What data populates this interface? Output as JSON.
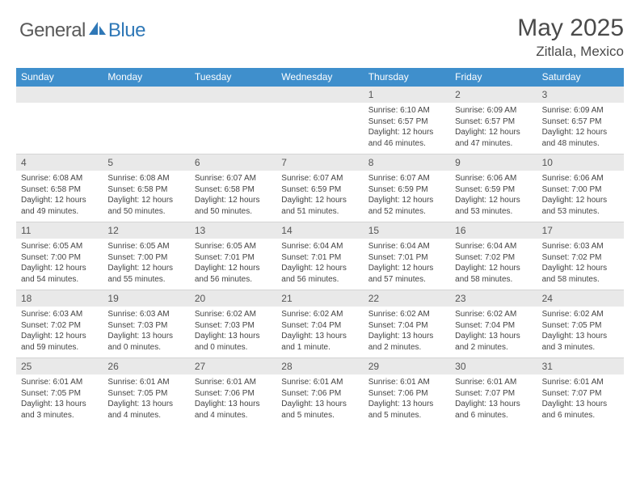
{
  "logo": {
    "part1": "General",
    "part2": "Blue"
  },
  "title": "May 2025",
  "location": "Zitlala, Mexico",
  "colors": {
    "header_bg": "#3f8fcc",
    "daynum_bg": "#e9e9e9",
    "page_bg": "#ffffff",
    "text": "#444444",
    "title_text": "#4a4a4a",
    "logo_gray": "#5a5a5a",
    "logo_blue": "#2f78b7"
  },
  "dow": [
    "Sunday",
    "Monday",
    "Tuesday",
    "Wednesday",
    "Thursday",
    "Friday",
    "Saturday"
  ],
  "weeks": [
    [
      {
        "n": "",
        "c": []
      },
      {
        "n": "",
        "c": []
      },
      {
        "n": "",
        "c": []
      },
      {
        "n": "",
        "c": []
      },
      {
        "n": "1",
        "c": [
          "Sunrise: 6:10 AM",
          "Sunset: 6:57 PM",
          "Daylight: 12 hours",
          "and 46 minutes."
        ]
      },
      {
        "n": "2",
        "c": [
          "Sunrise: 6:09 AM",
          "Sunset: 6:57 PM",
          "Daylight: 12 hours",
          "and 47 minutes."
        ]
      },
      {
        "n": "3",
        "c": [
          "Sunrise: 6:09 AM",
          "Sunset: 6:57 PM",
          "Daylight: 12 hours",
          "and 48 minutes."
        ]
      }
    ],
    [
      {
        "n": "4",
        "c": [
          "Sunrise: 6:08 AM",
          "Sunset: 6:58 PM",
          "Daylight: 12 hours",
          "and 49 minutes."
        ]
      },
      {
        "n": "5",
        "c": [
          "Sunrise: 6:08 AM",
          "Sunset: 6:58 PM",
          "Daylight: 12 hours",
          "and 50 minutes."
        ]
      },
      {
        "n": "6",
        "c": [
          "Sunrise: 6:07 AM",
          "Sunset: 6:58 PM",
          "Daylight: 12 hours",
          "and 50 minutes."
        ]
      },
      {
        "n": "7",
        "c": [
          "Sunrise: 6:07 AM",
          "Sunset: 6:59 PM",
          "Daylight: 12 hours",
          "and 51 minutes."
        ]
      },
      {
        "n": "8",
        "c": [
          "Sunrise: 6:07 AM",
          "Sunset: 6:59 PM",
          "Daylight: 12 hours",
          "and 52 minutes."
        ]
      },
      {
        "n": "9",
        "c": [
          "Sunrise: 6:06 AM",
          "Sunset: 6:59 PM",
          "Daylight: 12 hours",
          "and 53 minutes."
        ]
      },
      {
        "n": "10",
        "c": [
          "Sunrise: 6:06 AM",
          "Sunset: 7:00 PM",
          "Daylight: 12 hours",
          "and 53 minutes."
        ]
      }
    ],
    [
      {
        "n": "11",
        "c": [
          "Sunrise: 6:05 AM",
          "Sunset: 7:00 PM",
          "Daylight: 12 hours",
          "and 54 minutes."
        ]
      },
      {
        "n": "12",
        "c": [
          "Sunrise: 6:05 AM",
          "Sunset: 7:00 PM",
          "Daylight: 12 hours",
          "and 55 minutes."
        ]
      },
      {
        "n": "13",
        "c": [
          "Sunrise: 6:05 AM",
          "Sunset: 7:01 PM",
          "Daylight: 12 hours",
          "and 56 minutes."
        ]
      },
      {
        "n": "14",
        "c": [
          "Sunrise: 6:04 AM",
          "Sunset: 7:01 PM",
          "Daylight: 12 hours",
          "and 56 minutes."
        ]
      },
      {
        "n": "15",
        "c": [
          "Sunrise: 6:04 AM",
          "Sunset: 7:01 PM",
          "Daylight: 12 hours",
          "and 57 minutes."
        ]
      },
      {
        "n": "16",
        "c": [
          "Sunrise: 6:04 AM",
          "Sunset: 7:02 PM",
          "Daylight: 12 hours",
          "and 58 minutes."
        ]
      },
      {
        "n": "17",
        "c": [
          "Sunrise: 6:03 AM",
          "Sunset: 7:02 PM",
          "Daylight: 12 hours",
          "and 58 minutes."
        ]
      }
    ],
    [
      {
        "n": "18",
        "c": [
          "Sunrise: 6:03 AM",
          "Sunset: 7:02 PM",
          "Daylight: 12 hours",
          "and 59 minutes."
        ]
      },
      {
        "n": "19",
        "c": [
          "Sunrise: 6:03 AM",
          "Sunset: 7:03 PM",
          "Daylight: 13 hours",
          "and 0 minutes."
        ]
      },
      {
        "n": "20",
        "c": [
          "Sunrise: 6:02 AM",
          "Sunset: 7:03 PM",
          "Daylight: 13 hours",
          "and 0 minutes."
        ]
      },
      {
        "n": "21",
        "c": [
          "Sunrise: 6:02 AM",
          "Sunset: 7:04 PM",
          "Daylight: 13 hours",
          "and 1 minute."
        ]
      },
      {
        "n": "22",
        "c": [
          "Sunrise: 6:02 AM",
          "Sunset: 7:04 PM",
          "Daylight: 13 hours",
          "and 2 minutes."
        ]
      },
      {
        "n": "23",
        "c": [
          "Sunrise: 6:02 AM",
          "Sunset: 7:04 PM",
          "Daylight: 13 hours",
          "and 2 minutes."
        ]
      },
      {
        "n": "24",
        "c": [
          "Sunrise: 6:02 AM",
          "Sunset: 7:05 PM",
          "Daylight: 13 hours",
          "and 3 minutes."
        ]
      }
    ],
    [
      {
        "n": "25",
        "c": [
          "Sunrise: 6:01 AM",
          "Sunset: 7:05 PM",
          "Daylight: 13 hours",
          "and 3 minutes."
        ]
      },
      {
        "n": "26",
        "c": [
          "Sunrise: 6:01 AM",
          "Sunset: 7:05 PM",
          "Daylight: 13 hours",
          "and 4 minutes."
        ]
      },
      {
        "n": "27",
        "c": [
          "Sunrise: 6:01 AM",
          "Sunset: 7:06 PM",
          "Daylight: 13 hours",
          "and 4 minutes."
        ]
      },
      {
        "n": "28",
        "c": [
          "Sunrise: 6:01 AM",
          "Sunset: 7:06 PM",
          "Daylight: 13 hours",
          "and 5 minutes."
        ]
      },
      {
        "n": "29",
        "c": [
          "Sunrise: 6:01 AM",
          "Sunset: 7:06 PM",
          "Daylight: 13 hours",
          "and 5 minutes."
        ]
      },
      {
        "n": "30",
        "c": [
          "Sunrise: 6:01 AM",
          "Sunset: 7:07 PM",
          "Daylight: 13 hours",
          "and 6 minutes."
        ]
      },
      {
        "n": "31",
        "c": [
          "Sunrise: 6:01 AM",
          "Sunset: 7:07 PM",
          "Daylight: 13 hours",
          "and 6 minutes."
        ]
      }
    ]
  ]
}
